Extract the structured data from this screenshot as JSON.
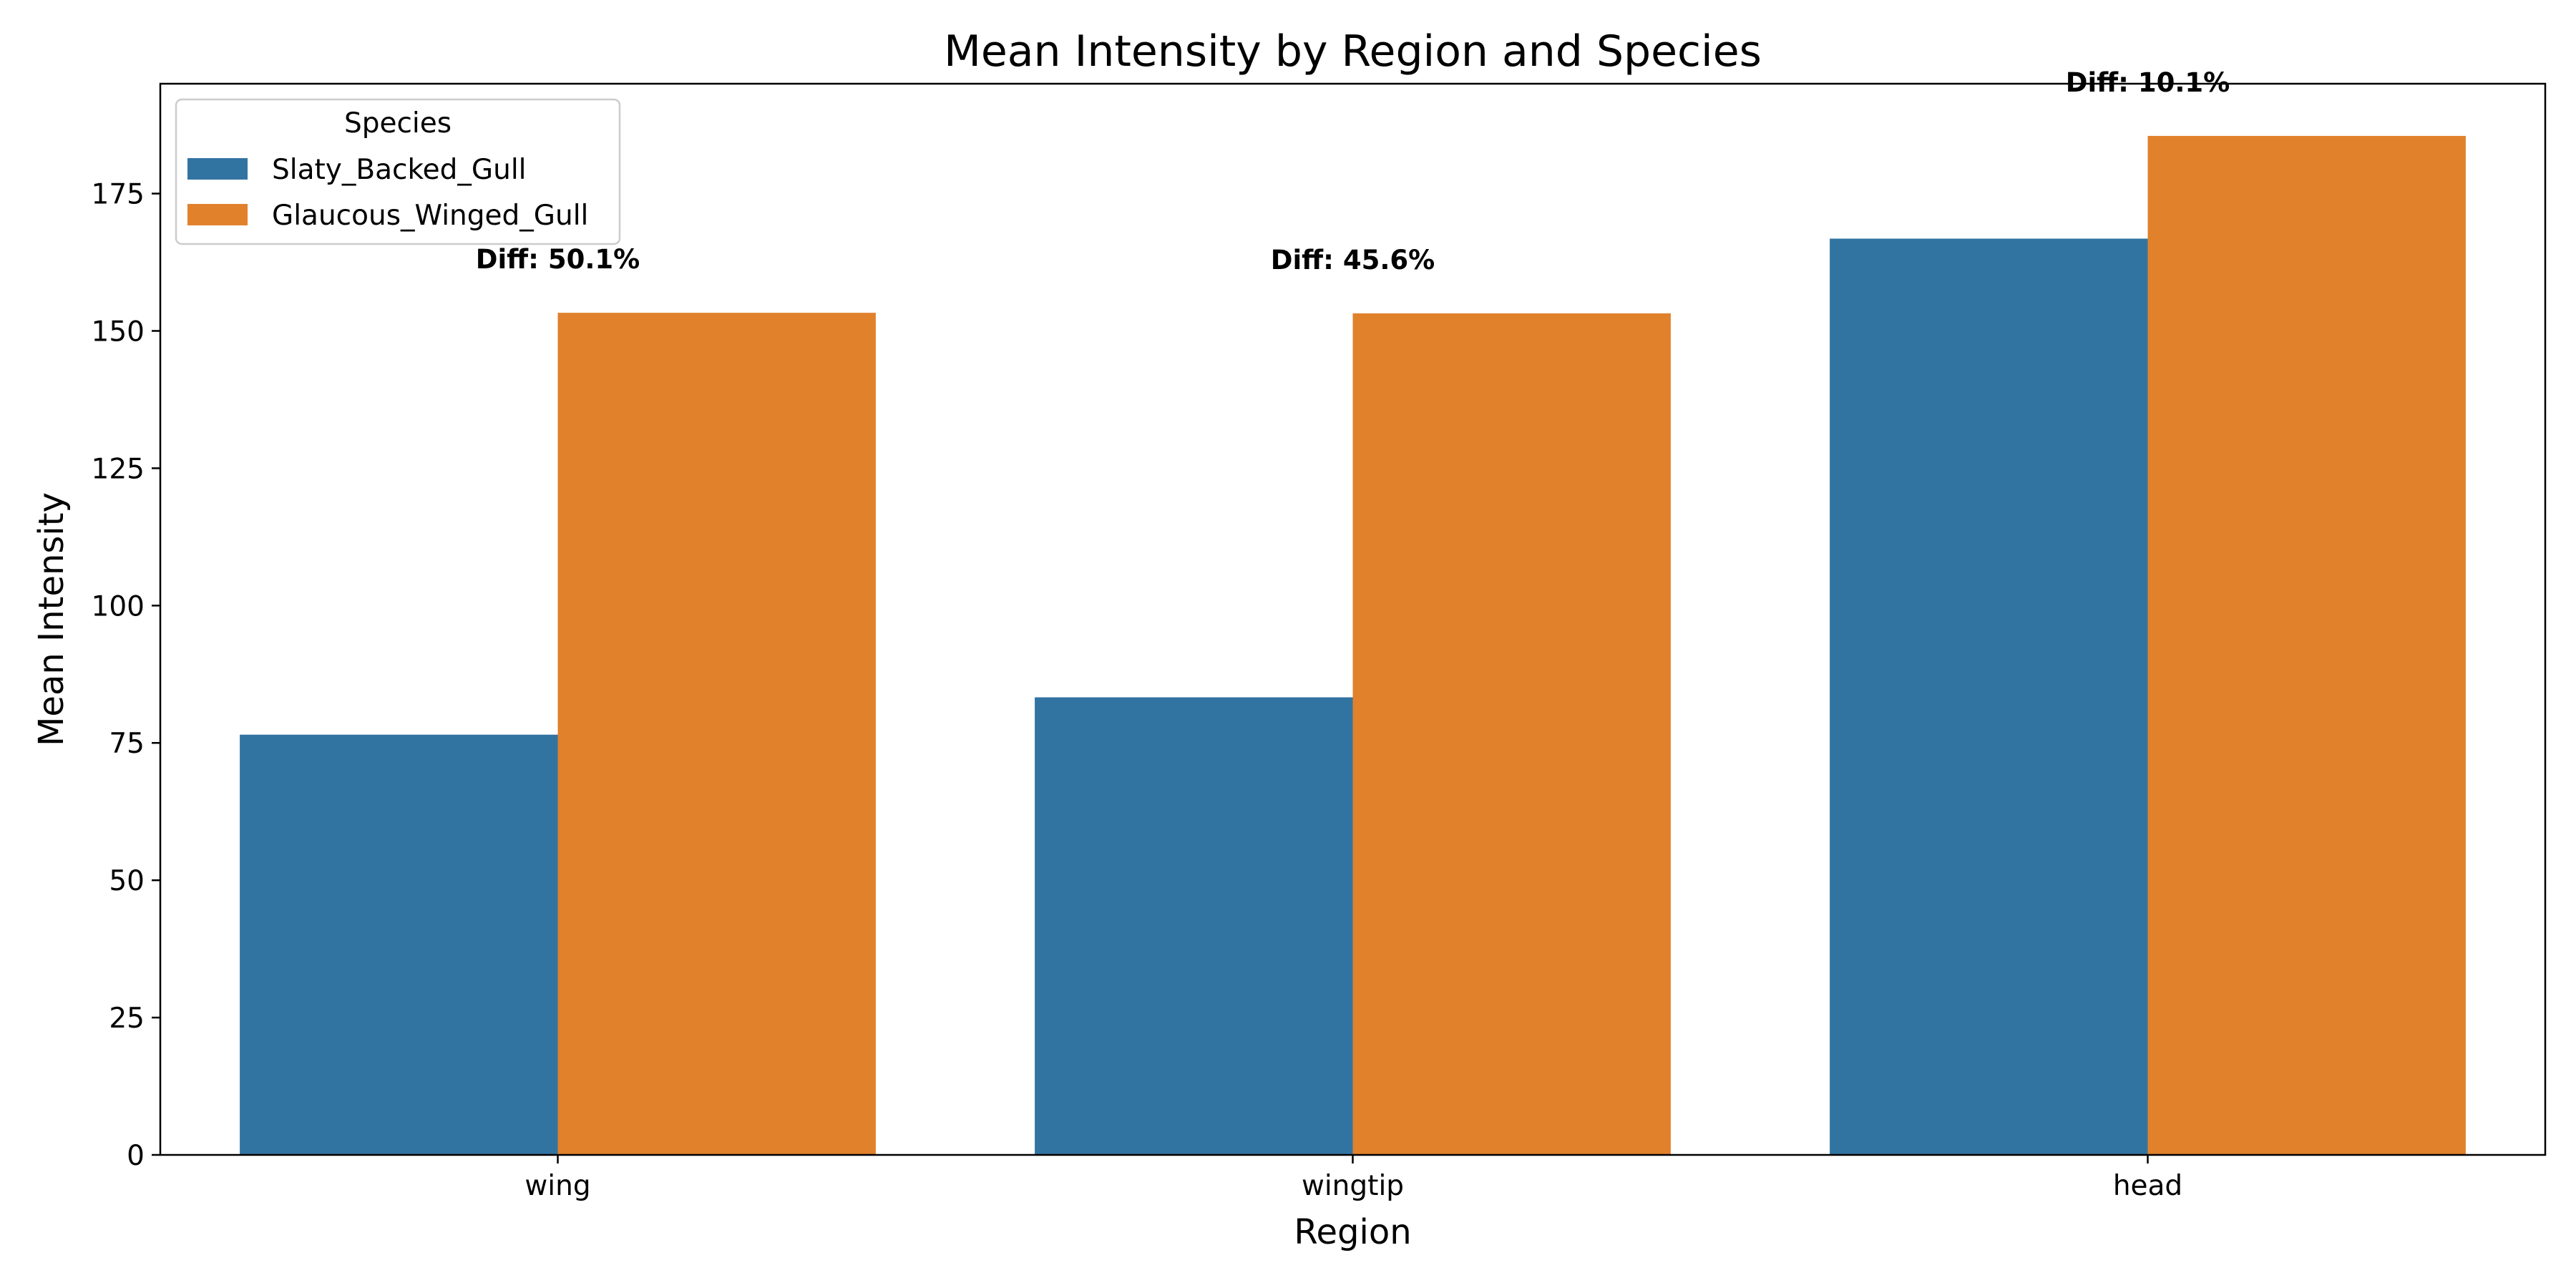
{
  "chart_data": {
    "type": "bar",
    "title": "Mean Intensity by Region and Species",
    "xlabel": "Region",
    "ylabel": "Mean Intensity",
    "categories": [
      "wing",
      "wingtip",
      "head"
    ],
    "ylim": [
      0,
      195
    ],
    "yticks": [
      0,
      25,
      50,
      75,
      100,
      125,
      150,
      175
    ],
    "series": [
      {
        "name": "Slaty_Backed_Gull",
        "color": "#3274a1",
        "values": [
          76.5,
          83.3,
          166.8
        ]
      },
      {
        "name": "Glaucous_Winged_Gull",
        "color": "#e1812c",
        "values": [
          153.3,
          153.2,
          185.5
        ]
      }
    ],
    "legend": {
      "title": "Species",
      "placement": "top-left"
    },
    "annotations": [
      "Diff: 50.1%",
      "Diff: 45.6%",
      "Diff: 10.1%"
    ],
    "grid": false
  }
}
